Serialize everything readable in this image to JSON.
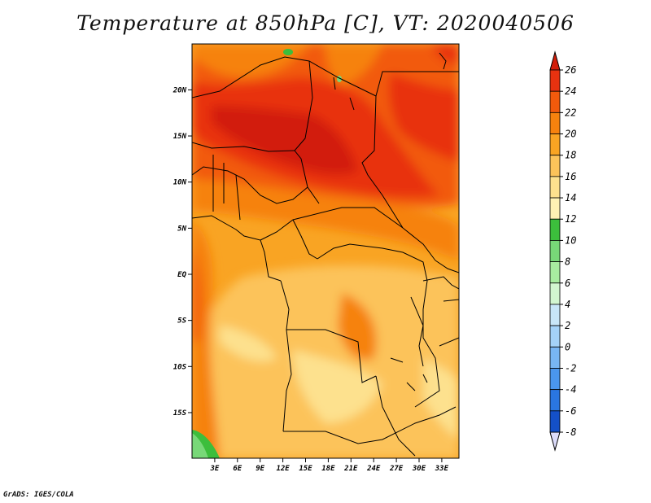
{
  "title": "Temperature at 850hPa [C], VT: 2020040506",
  "credit": "GrADS: IGES/COLA",
  "map": {
    "lat_labels": [
      {
        "text": "20N",
        "lat": 20
      },
      {
        "text": "15N",
        "lat": 15
      },
      {
        "text": "10N",
        "lat": 10
      },
      {
        "text": "5N",
        "lat": 5
      },
      {
        "text": "EQ",
        "lat": 0
      },
      {
        "text": "5S",
        "lat": -5
      },
      {
        "text": "10S",
        "lat": -10
      },
      {
        "text": "15S",
        "lat": -15
      }
    ],
    "lon_labels": [
      {
        "text": "3E",
        "lon": 3
      },
      {
        "text": "6E",
        "lon": 6
      },
      {
        "text": "9E",
        "lon": 9
      },
      {
        "text": "12E",
        "lon": 12
      },
      {
        "text": "15E",
        "lon": 15
      },
      {
        "text": "18E",
        "lon": 18
      },
      {
        "text": "21E",
        "lon": 21
      },
      {
        "text": "24E",
        "lon": 24
      },
      {
        "text": "27E",
        "lon": 27
      },
      {
        "text": "30E",
        "lon": 30
      },
      {
        "text": "33E",
        "lon": 33
      }
    ]
  },
  "colorbar": {
    "levels": [
      "26",
      "24",
      "22",
      "20",
      "18",
      "16",
      "14",
      "12",
      "10",
      "8",
      "6",
      "4",
      "2",
      "0",
      "-2",
      "-4",
      "-6",
      "-8"
    ],
    "colors": [
      "#e83210",
      "#f25a0c",
      "#f6820e",
      "#f9a423",
      "#fcc35a",
      "#fde18e",
      "#fff2b4",
      "#3cbe3c",
      "#78d878",
      "#a8eca0",
      "#d2f6d0",
      "#c8e6f8",
      "#a4d2f8",
      "#78b6f4",
      "#4a96ee",
      "#2a76e0",
      "#1450c8",
      "#0a2a96",
      "#081070"
    ],
    "top_color": "#d21e0a",
    "bottom_color": "#dcdcfa"
  }
}
